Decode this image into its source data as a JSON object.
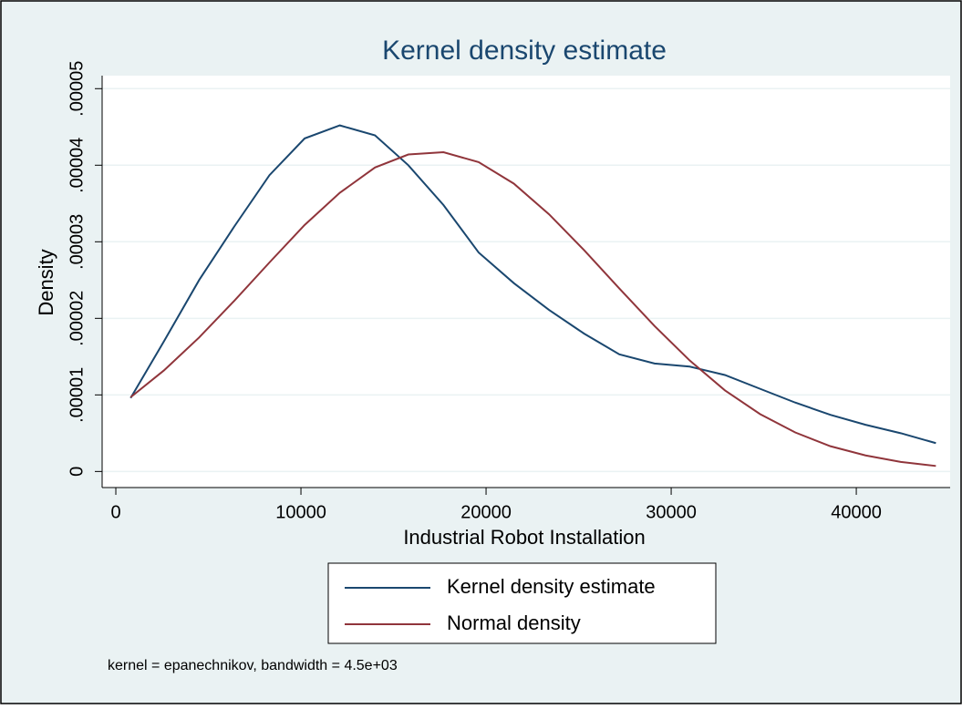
{
  "chart_data": {
    "type": "line",
    "title": "Kernel density estimate",
    "xlabel": "Industrial Robot Installation",
    "ylabel": "Density",
    "x": [
      800,
      2600,
      4500,
      6400,
      8300,
      10200,
      12100,
      14000,
      15800,
      17700,
      19600,
      21500,
      23400,
      25300,
      27200,
      29100,
      31000,
      32900,
      34800,
      36700,
      38600,
      40500,
      42400,
      44300
    ],
    "series": [
      {
        "name": "Kernel density estimate",
        "color": "#1a476f",
        "values": [
          9.6e-06,
          1.7e-05,
          2.5e-05,
          3.2e-05,
          3.87e-05,
          4.35e-05,
          4.52e-05,
          4.39e-05,
          4e-05,
          3.48e-05,
          2.86e-05,
          2.46e-05,
          2.11e-05,
          1.8e-05,
          1.53e-05,
          1.41e-05,
          1.37e-05,
          1.26e-05,
          1.08e-05,
          9e-06,
          7.4e-06,
          6.1e-06,
          5e-06,
          3.7e-06
        ]
      },
      {
        "name": "Normal density",
        "color": "#90353b",
        "values": [
          9.7e-06,
          1.32e-05,
          1.75e-05,
          2.23e-05,
          2.73e-05,
          3.22e-05,
          3.64e-05,
          3.97e-05,
          4.14e-05,
          4.17e-05,
          4.04e-05,
          3.76e-05,
          3.36e-05,
          2.89e-05,
          2.39e-05,
          1.9e-05,
          1.45e-05,
          1.06e-05,
          7.5e-06,
          5.1e-06,
          3.3e-06,
          2.1e-06,
          1.25e-06,
          7.2e-07
        ]
      }
    ],
    "xlim": [
      -740,
      45070
    ],
    "xticks": [
      0,
      10000,
      20000,
      30000,
      40000
    ],
    "ylim": [
      -2.1e-06,
      5.17e-05
    ],
    "yticks": [
      0,
      {
        "value": 1e-05,
        "label": ".00001"
      },
      {
        "value": 2e-05,
        "label": ".00002"
      },
      {
        "value": 3e-05,
        "label": ".00003"
      },
      {
        "value": 4e-05,
        "label": ".00004"
      },
      {
        "value": 5e-05,
        "label": ".00005"
      }
    ],
    "grid": true,
    "note": "kernel = epanechnikov, bandwidth =  4.5e+03"
  }
}
